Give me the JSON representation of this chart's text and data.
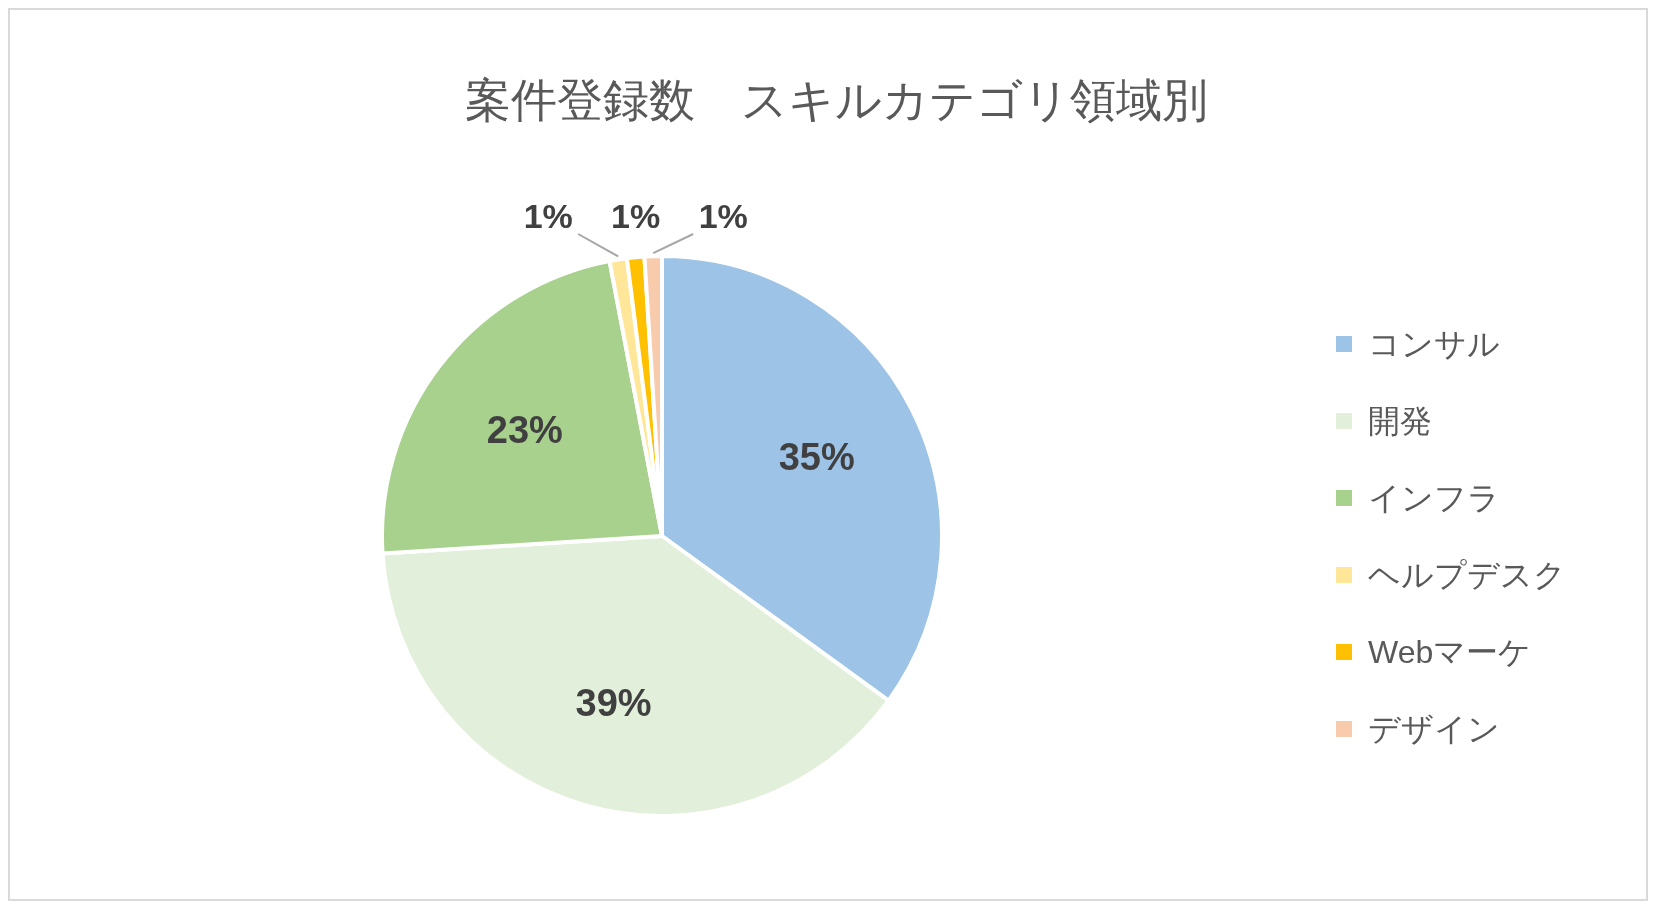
{
  "chart_data": {
    "type": "pie",
    "title": "案件登録数　スキルカテゴリ領域別",
    "categories": [
      "コンサル",
      "開発",
      "インフラ",
      "ヘルプデスク",
      "Webマーケ",
      "デザイン"
    ],
    "values": [
      35,
      39,
      23,
      1,
      1,
      1
    ],
    "colors": [
      "#9dc3e6",
      "#e2efda",
      "#a9d18e",
      "#ffe699",
      "#ffc000",
      "#f8cbad"
    ],
    "value_labels": [
      "35%",
      "39%",
      "23%",
      "1%",
      "1%",
      "1%"
    ],
    "legend": "right"
  }
}
